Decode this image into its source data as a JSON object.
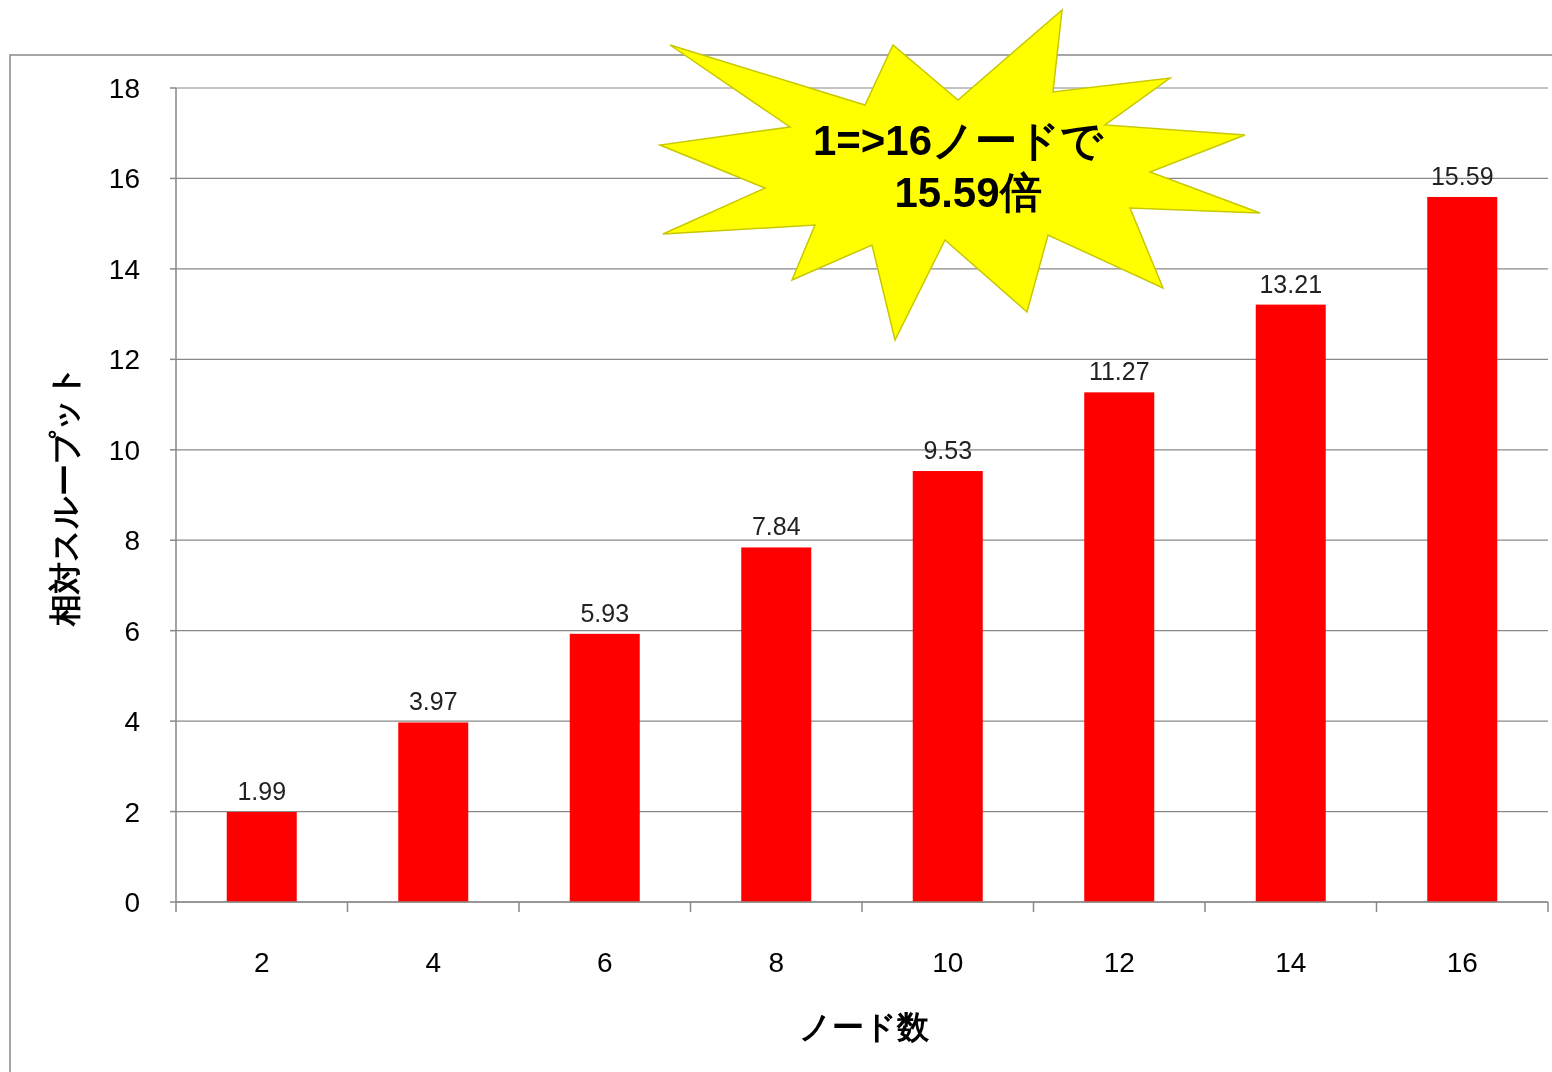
{
  "chart_data": {
    "type": "bar",
    "categories": [
      "2",
      "4",
      "6",
      "8",
      "10",
      "12",
      "14",
      "16"
    ],
    "values": [
      1.99,
      3.97,
      5.93,
      7.84,
      9.53,
      11.27,
      13.21,
      15.59
    ],
    "color": "#ff0000",
    "data_labels": true,
    "ylim": [
      0,
      18
    ],
    "yticks": [
      0,
      2,
      4,
      6,
      8,
      10,
      12,
      14,
      16,
      18
    ],
    "grid": "y",
    "xlabel": "ノード数",
    "ylabel": "相対スループット",
    "annotations": [
      "1=>16ノードで",
      "15.59倍"
    ]
  }
}
